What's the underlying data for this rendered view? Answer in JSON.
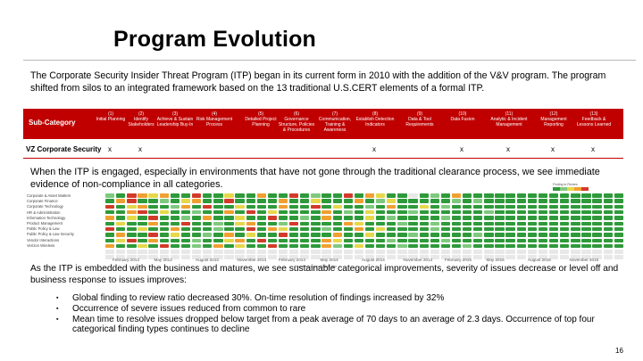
{
  "slide": {
    "title": "Program Evolution",
    "intro": "The Corporate Security Insider Threat Program (ITP) began in its current form in 2010 with the addition of the V&V program.  The program shifted from silos to an integrated framework based on the 13 traditional U.S.CERT elements of a formal ITP.",
    "middle_text": "When the ITP is engaged, especially in environments that have not gone through the traditional clearance process, we see immediate evidence of non-compliance in all categories.",
    "bottom_text": "As the ITP is embedded with the business and matures, we see sustainable categorical improvements, severity of issues decrease or level off and business response to issues improves:",
    "bullets": [
      "Global finding to review ratio decreased 30%. On-time resolution of findings increased by 32%",
      "Occurrence of severe issues reduced from common to rare",
      "Mean time to resolve issues dropped below target from a peak average of 70 days to an average of 2.3 days.  Occurrence of top four categorical finding types continues to decline"
    ],
    "page_number": "16"
  },
  "matrix": {
    "subcategory_label": "Sub-Category",
    "row_label": "VZ Corporate Security",
    "columns": [
      {
        "num": "(1)",
        "label": "Initial Planning"
      },
      {
        "num": "(2)",
        "label": "Identify Stakeholders"
      },
      {
        "num": "(3)",
        "label": "Achieve & Sustain Leadership Buy-In"
      },
      {
        "num": "(4)",
        "label": "Risk Management Process"
      },
      {
        "num": "(5)",
        "label": "Detailed Project Planning"
      },
      {
        "num": "(6)",
        "label": "Governance Structure, Policies & Procedures"
      },
      {
        "num": "(7)",
        "label": "Communication, Training & Awareness"
      },
      {
        "num": "(8)",
        "label": "Establish Detection Indicators"
      },
      {
        "num": "(9)",
        "label": "Data & Tool Requirements"
      },
      {
        "num": "(10)",
        "label": "Data Fusion"
      },
      {
        "num": "(11)",
        "label": "Analytic & Incident Management"
      },
      {
        "num": "(12)",
        "label": "Management Reporting"
      },
      {
        "num": "(13)",
        "label": "Feedback & Lessons Learned"
      }
    ],
    "marks": [
      "x",
      "x",
      "",
      "",
      "",
      "",
      "",
      "x",
      "",
      "x",
      "x",
      "x",
      "x"
    ]
  },
  "heatmap": {
    "categories": [
      "Corporate & Asset Matters",
      "Corporate Finance",
      "Corporate Technology",
      "HR & Administration",
      "Information Technology",
      "Product Management",
      "Public Policy & Law",
      "Public Policy & Law Security",
      "Vendor Interactions",
      "Verizon Wireless",
      "",
      ""
    ],
    "date_labels": [
      "February 2013",
      "May 2013",
      "August 2013",
      "November 2013",
      "February 2014",
      "May 2014",
      "August 2014",
      "November 2014",
      "February 2015",
      "May 2015",
      "August 2015",
      "November 2015"
    ],
    "x_axis_label": "Month of review/Start Date",
    "legend_title": "Finding to Review",
    "palette": {
      "g": "#2e9a3a",
      "lg": "#7fc97f",
      "y": "#e6d84a",
      "o": "#f0a030",
      "r": "#d23a2a",
      "e": "#e8e8e8"
    },
    "rows": [
      "lggroyoggrggyggoggrglgggrgoygg glggoggggggg",
      "gorgglggyoggrgggloggygggoglgyggggglgglggg",
      "rgyogglgogrggyggloggrgygglggoggyglggggggg",
      "ggorgygglgggogrgyggggoglggyggglggggggglgg",
      "ogygrgglggoggyggrgglggogggyglggggglgggggg",
      "gyggoggrgglggyogglgrggggoyggglggglgggggg",
      "rggyggoggllgggrgoyggglgggogygggglgggggggg",
      "goggrgygglggogyggrgggloggyggglgggggglgggg",
      "gyrgoggglgggyogrggggloygggglggggglggggggg",
      "oggygrgglggogyggrggggolggyggglgggggglgggg",
      "eeeeeeeeeeeeeeeeeeeeeeeeeeeeeeeeeeeeeeeeeeeeeeee",
      "eeeeeeeeeeeeeeeeeeeeeeeeeeeeeeeeeeeeeeeeeeeeeeee"
    ]
  }
}
